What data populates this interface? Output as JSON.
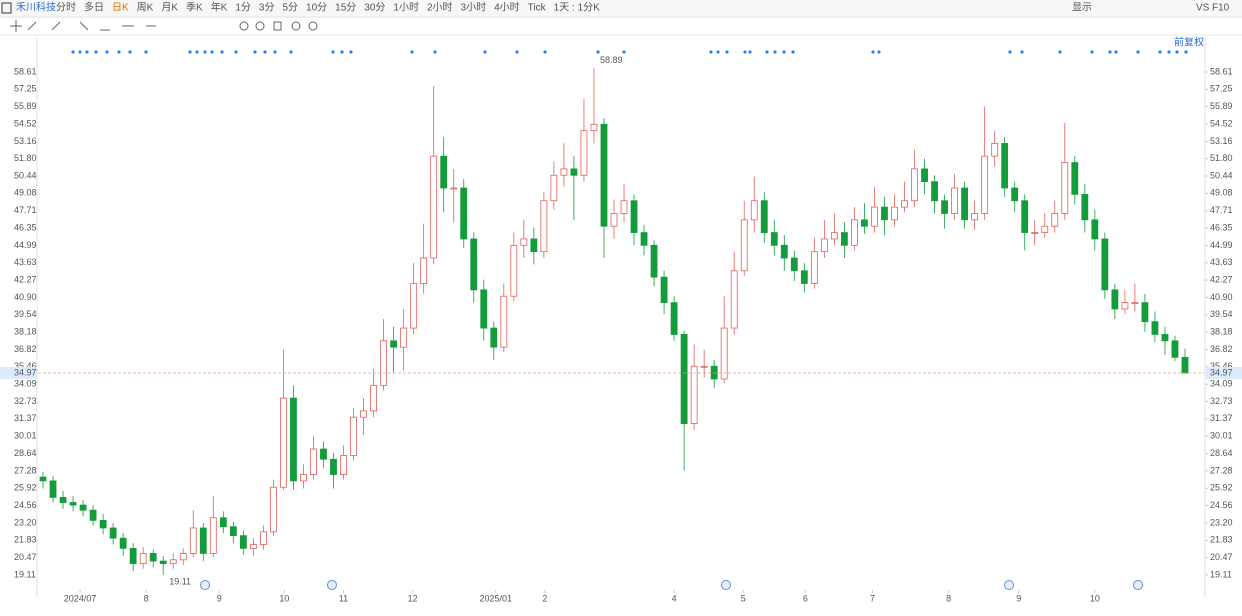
{
  "header": {
    "stock": "禾川科技",
    "periods": [
      "分时",
      "多日",
      "日K",
      "周K",
      "月K",
      "季K",
      "年K",
      "1分",
      "3分",
      "5分",
      "10分",
      "15分",
      "30分",
      "1小时",
      "2小时",
      "3小时",
      "4小时",
      "Tick",
      "1天 : 1分K"
    ],
    "active": "日K",
    "right": [
      "显示",
      "VS",
      "F10"
    ],
    "adjust": "前复权"
  },
  "chart_data": {
    "type": "candlestick",
    "up_color": "#e0605a",
    "down_color": "#149c3c",
    "grid": false,
    "ylim": [
      17.93,
      61.28
    ],
    "yticks": [
      58.61,
      57.25,
      55.89,
      54.52,
      53.16,
      {
        "value": 51.8,
        "label": "51.80"
      },
      50.44,
      49.08,
      47.71,
      46.35,
      44.99,
      43.63,
      42.27,
      {
        "value": 40.9,
        "label": "40.90"
      },
      39.54,
      38.18,
      36.82,
      35.46,
      34.09,
      32.73,
      31.37,
      30.01,
      28.64,
      27.28,
      25.92,
      24.56,
      {
        "value": 23.2,
        "label": "23.20"
      },
      21.83,
      20.47,
      19.11
    ],
    "xlim": [
      -0.5,
      114.5
    ],
    "xticks": [
      {
        "value": 3.7,
        "label": "2024/07"
      },
      {
        "value": 10.3,
        "label": "8"
      },
      {
        "value": 17.6,
        "label": "9"
      },
      {
        "value": 24.1,
        "label": "10"
      },
      {
        "value": 30.0,
        "label": "11"
      },
      {
        "value": 36.9,
        "label": "12"
      },
      {
        "value": 45.2,
        "label": "2025/01"
      },
      {
        "value": 50.1,
        "label": "2"
      },
      {
        "value": 63.0,
        "label": "4"
      },
      {
        "value": 69.9,
        "label": "5"
      },
      {
        "value": 76.1,
        "label": "6"
      },
      {
        "value": 82.8,
        "label": "7"
      },
      {
        "value": 90.4,
        "label": "8"
      },
      {
        "value": 97.4,
        "label": "9"
      },
      {
        "value": 105.0,
        "label": "10"
      }
    ],
    "open": [
      26.8,
      26.5,
      25.2,
      24.8,
      24.6,
      24.2,
      23.4,
      22.8,
      22.0,
      21.2,
      20.0,
      20.8,
      20.2,
      20.0,
      20.3,
      20.8,
      22.8,
      20.8,
      23.6,
      22.9,
      22.2,
      21.2,
      21.5,
      22.5,
      26.0,
      33.0,
      26.5,
      27.0,
      29.0,
      28.2,
      27.0,
      28.5,
      31.5,
      32.0,
      34.0,
      37.5,
      37.0,
      38.5,
      42.0,
      44.0,
      52.0,
      49.5,
      49.5,
      45.5,
      41.5,
      38.5,
      37.0,
      41.0,
      45.0,
      45.5,
      44.5,
      48.5,
      50.5,
      51.0,
      50.5,
      54.0,
      54.5,
      46.5,
      47.5,
      48.5,
      46.0,
      45.0,
      42.5,
      40.5,
      38.0,
      31.0,
      35.5,
      35.5,
      34.5,
      38.5,
      43.0,
      47.0,
      48.5,
      46.0,
      45.0,
      44.0,
      43.0,
      42.0,
      44.5,
      45.5,
      46.0,
      45.0,
      47.0,
      46.5,
      48.0,
      47.0,
      48.0,
      48.5,
      51.0,
      50.0,
      48.5,
      47.5,
      49.5,
      47.0,
      47.5,
      52.0,
      53.0,
      49.5,
      48.5,
      46.0,
      46.0,
      46.5,
      47.5,
      51.5,
      49.0,
      47.0,
      45.5,
      41.5,
      40.0,
      40.5,
      40.5,
      39.0,
      38.0,
      37.5,
      36.2
    ],
    "high": [
      27.2,
      26.9,
      25.7,
      25.3,
      25.0,
      24.6,
      23.9,
      23.2,
      22.4,
      21.6,
      21.3,
      21.1,
      20.6,
      20.8,
      21.2,
      24.2,
      23.2,
      25.3,
      24.1,
      23.3,
      22.6,
      22.0,
      23.0,
      26.6,
      36.8,
      34.0,
      27.8,
      30.0,
      29.6,
      28.7,
      29.3,
      32.2,
      33.0,
      35.3,
      39.2,
      38.6,
      40.0,
      43.6,
      46.7,
      57.5,
      53.5,
      51.0,
      50.2,
      46.0,
      42.3,
      39.0,
      42.0,
      46.0,
      47.0,
      46.4,
      49.2,
      51.6,
      53.0,
      52.0,
      56.5,
      58.89,
      55.0,
      48.6,
      49.8,
      49.0,
      46.6,
      45.4,
      43.0,
      41.0,
      38.3,
      37.2,
      36.8,
      36.0,
      41.0,
      44.5,
      48.5,
      50.4,
      49.2,
      47.0,
      45.8,
      44.6,
      43.6,
      45.6,
      47.0,
      47.5,
      46.8,
      48.0,
      48.3,
      49.6,
      48.8,
      49.0,
      50.0,
      52.5,
      51.8,
      50.5,
      49.0,
      50.6,
      50.0,
      48.5,
      55.9,
      54.0,
      53.5,
      50.0,
      49.0,
      47.0,
      47.5,
      48.5,
      54.6,
      52.0,
      49.8,
      47.8,
      46.0,
      42.0,
      41.5,
      42.0,
      41.2,
      39.8,
      38.6,
      37.9,
      36.9
    ],
    "low": [
      25.9,
      24.8,
      24.3,
      24.1,
      23.7,
      23.0,
      22.3,
      21.5,
      20.6,
      19.4,
      19.6,
      19.7,
      19.11,
      19.6,
      19.9,
      20.5,
      20.2,
      20.5,
      22.4,
      21.6,
      20.7,
      20.6,
      21.1,
      22.2,
      25.8,
      25.8,
      25.9,
      26.6,
      27.5,
      25.9,
      26.6,
      28.1,
      30.1,
      31.5,
      33.6,
      35.0,
      35.2,
      38.0,
      41.2,
      43.5,
      47.6,
      46.8,
      44.8,
      40.5,
      37.5,
      36.0,
      36.6,
      40.6,
      44.0,
      43.5,
      44.0,
      47.8,
      49.6,
      47.0,
      50.0,
      53.0,
      44.0,
      45.5,
      46.8,
      45.0,
      44.2,
      41.8,
      39.6,
      37.5,
      27.3,
      30.5,
      34.6,
      33.8,
      34.2,
      38.0,
      42.6,
      46.0,
      45.2,
      44.2,
      43.0,
      42.2,
      41.3,
      41.6,
      44.0,
      45.0,
      44.0,
      44.6,
      45.9,
      46.0,
      45.8,
      46.5,
      47.6,
      48.0,
      49.0,
      47.5,
      46.3,
      47.0,
      46.3,
      46.2,
      47.0,
      51.2,
      48.8,
      47.6,
      44.6,
      45.0,
      45.6,
      46.0,
      47.0,
      48.2,
      46.0,
      44.6,
      40.8,
      39.2,
      39.6,
      39.8,
      38.2,
      37.4,
      36.4,
      35.9,
      34.9
    ],
    "close": [
      26.5,
      25.2,
      24.8,
      24.6,
      24.2,
      23.4,
      22.8,
      22.0,
      21.2,
      20.0,
      20.8,
      20.2,
      20.0,
      20.3,
      20.8,
      22.8,
      20.8,
      23.6,
      22.9,
      22.2,
      21.2,
      21.5,
      22.5,
      26.0,
      33.0,
      26.5,
      27.0,
      29.0,
      28.2,
      27.0,
      28.5,
      31.5,
      32.0,
      34.0,
      37.5,
      37.0,
      38.5,
      42.0,
      44.0,
      52.0,
      49.5,
      49.5,
      45.5,
      41.5,
      38.5,
      37.0,
      41.0,
      45.0,
      45.5,
      44.5,
      48.5,
      50.5,
      51.0,
      50.5,
      54.0,
      54.5,
      46.5,
      47.5,
      48.5,
      46.0,
      45.0,
      42.5,
      40.5,
      38.0,
      31.0,
      35.5,
      35.5,
      34.5,
      38.5,
      43.0,
      47.0,
      48.5,
      46.0,
      45.0,
      44.0,
      43.0,
      42.0,
      44.5,
      45.5,
      46.0,
      45.0,
      47.0,
      46.5,
      48.0,
      47.0,
      48.0,
      48.5,
      51.0,
      50.0,
      48.5,
      47.5,
      49.5,
      47.0,
      47.5,
      52.0,
      53.0,
      49.5,
      48.5,
      46.0,
      46.0,
      46.5,
      47.5,
      51.5,
      49.0,
      47.0,
      45.5,
      41.5,
      40.0,
      40.5,
      40.5,
      39.0,
      38.0,
      37.5,
      36.2,
      34.97
    ]
  }
}
